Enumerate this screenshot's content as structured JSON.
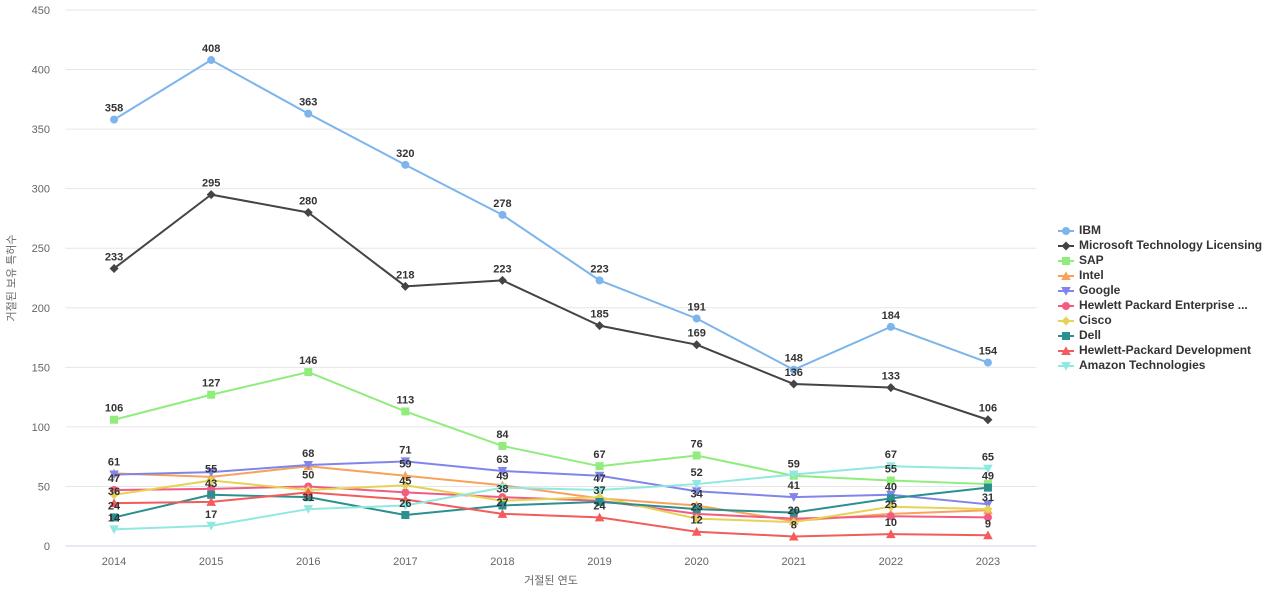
{
  "chart_data": {
    "type": "line",
    "title": "",
    "xlabel": "거절된 연도",
    "ylabel": "거절된 보유 특허수",
    "x_categories": [
      "2014",
      "2015",
      "2016",
      "2017",
      "2018",
      "2019",
      "2020",
      "2021",
      "2022",
      "2023"
    ],
    "y_ticks": [
      0,
      50,
      100,
      150,
      200,
      250,
      300,
      350,
      400,
      450
    ],
    "ylim": [
      0,
      450
    ],
    "grid": true,
    "legend_position": "right",
    "grid_color": "#e6e6e6",
    "axis_line_color": "#ccd6eb",
    "label_color": "#333333",
    "tick_color": "#666666",
    "series": [
      {
        "name": "IBM",
        "color": "#7cb5ec",
        "marker": "circle",
        "values": [
          358,
          408,
          363,
          320,
          278,
          223,
          191,
          148,
          184,
          154
        ],
        "labeled": [
          1,
          1,
          1,
          1,
          1,
          1,
          1,
          1,
          1,
          1
        ]
      },
      {
        "name": "Microsoft Technology Licensing",
        "color": "#434348",
        "marker": "diamond",
        "values": [
          233,
          295,
          280,
          218,
          223,
          185,
          169,
          136,
          133,
          106
        ],
        "labeled": [
          1,
          1,
          1,
          1,
          1,
          1,
          1,
          1,
          1,
          1
        ]
      },
      {
        "name": "SAP",
        "color": "#90ed7d",
        "marker": "square",
        "values": [
          106,
          127,
          146,
          113,
          84,
          67,
          76,
          59,
          55,
          52
        ],
        "labeled": [
          1,
          1,
          1,
          1,
          1,
          1,
          1,
          1,
          1,
          0
        ]
      },
      {
        "name": "Intel",
        "color": "#f7a35c",
        "marker": "triangle",
        "values": [
          61,
          58,
          67,
          59,
          51,
          40,
          34,
          21,
          27,
          30
        ],
        "labeled": [
          1,
          0,
          0,
          1,
          0,
          0,
          1,
          0,
          0,
          0
        ]
      },
      {
        "name": "Google",
        "color": "#8085e9",
        "marker": "triangle-down",
        "values": [
          60,
          62,
          68,
          71,
          63,
          59,
          46,
          41,
          43,
          35
        ],
        "labeled": [
          0,
          0,
          1,
          1,
          1,
          0,
          0,
          1,
          0,
          0
        ]
      },
      {
        "name": "Hewlett Packard Enterprise ...",
        "color": "#f15c80",
        "marker": "circle",
        "values": [
          47,
          48,
          50,
          45,
          41,
          38,
          27,
          23,
          25,
          24
        ],
        "labeled": [
          1,
          0,
          1,
          1,
          0,
          0,
          0,
          0,
          1,
          0
        ]
      },
      {
        "name": "Cisco",
        "color": "#e4d354",
        "marker": "diamond",
        "values": [
          43,
          55,
          47,
          51,
          38,
          41,
          23,
          20,
          33,
          31
        ],
        "labeled": [
          0,
          1,
          0,
          0,
          1,
          0,
          1,
          1,
          0,
          1
        ]
      },
      {
        "name": "Dell",
        "color": "#2b908f",
        "marker": "square",
        "values": [
          24,
          43,
          41,
          26,
          34,
          37,
          31,
          28,
          40,
          49
        ],
        "labeled": [
          1,
          1,
          0,
          1,
          0,
          1,
          0,
          0,
          1,
          1
        ]
      },
      {
        "name": "Hewlett-Packard Development",
        "color": "#f45b5b",
        "marker": "triangle",
        "values": [
          36,
          37,
          45,
          39,
          27,
          24,
          12,
          8,
          10,
          9
        ],
        "labeled": [
          1,
          0,
          0,
          0,
          1,
          1,
          1,
          1,
          1,
          1
        ]
      },
      {
        "name": "Amazon Technologies",
        "color": "#91e8e1",
        "marker": "triangle-down",
        "values": [
          14,
          17,
          31,
          34,
          49,
          47,
          52,
          60,
          67,
          65
        ],
        "labeled": [
          1,
          1,
          1,
          0,
          1,
          1,
          1,
          0,
          1,
          1
        ]
      }
    ]
  }
}
